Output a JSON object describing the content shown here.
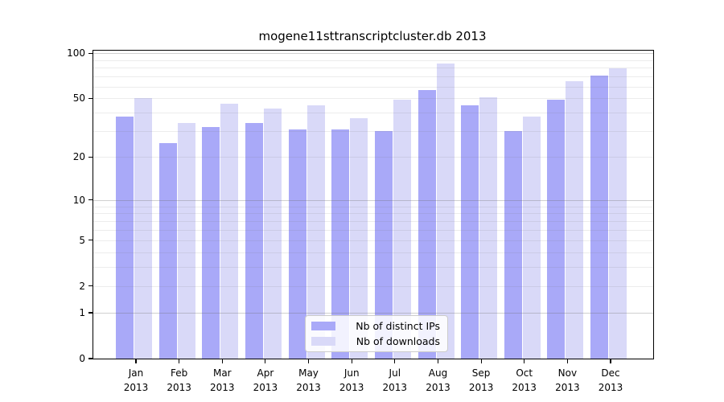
{
  "title": "mogene11sttranscriptcluster.db 2013",
  "chart_data": {
    "type": "bar",
    "title": "mogene11sttranscriptcluster.db 2013",
    "categories": [
      "Jan 2013",
      "Feb 2013",
      "Mar 2013",
      "Apr 2013",
      "May 2013",
      "Jun 2013",
      "Jul 2013",
      "Aug 2013",
      "Sep 2013",
      "Oct 2013",
      "Nov 2013",
      "Dec 2013"
    ],
    "series": [
      {
        "name": "Nb of distinct IPs",
        "color": "#a9a9f8",
        "values": [
          38,
          25,
          32,
          34,
          31,
          31,
          30,
          57,
          45,
          30,
          49,
          71
        ]
      },
      {
        "name": "Nb of downloads",
        "color": "#d9d9f8",
        "values": [
          50,
          34,
          46,
          43,
          45,
          37,
          49,
          86,
          51,
          38,
          65,
          79
        ]
      }
    ],
    "xlabel": "",
    "ylabel": "",
    "y_scale": "log1p",
    "y_ticks": [
      0,
      1,
      2,
      5,
      10,
      20,
      50,
      100
    ],
    "ylim": [
      0,
      104
    ],
    "grid": "on",
    "minor_gridlines": [
      2,
      3,
      4,
      5,
      6,
      7,
      8,
      9,
      20,
      30,
      40,
      50,
      60,
      70,
      80,
      90
    ],
    "major_gridlines": [
      1,
      10,
      100
    ],
    "legend_position": "lower-center"
  },
  "colors": {
    "ips_bar": "#a9a9f8",
    "downloads_bar": "#d9d9f8",
    "spine": "#000000",
    "background": "#ffffff"
  }
}
